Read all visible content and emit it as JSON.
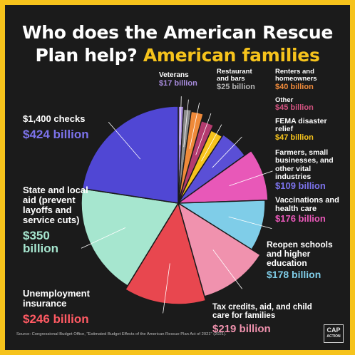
{
  "title_line1": "Who does the American Rescue",
  "title_line2_white": "Plan help?",
  "title_line2_highlight": "American families",
  "colors": {
    "background": "#1b1b1b",
    "frame": "#f6c31c",
    "highlight": "#f6c31c"
  },
  "chart_data": {
    "type": "pie",
    "title": "Who does the American Rescue Plan help? American families",
    "unit": "billion",
    "slices": [
      {
        "label": "Veterans",
        "value": 17,
        "amount_text": "$17 billion",
        "color": "#a78bdc"
      },
      {
        "label": "Restaurant and bars",
        "value": 25,
        "amount_text": "$25 billion",
        "color": "#8d8d8d"
      },
      {
        "label": "Renters and homeowners",
        "value": 40,
        "amount_text": "$40 billion",
        "color": "#ef8a3a"
      },
      {
        "label": "Other",
        "value": 45,
        "amount_text": "$45 billion",
        "color": "#b43b6e"
      },
      {
        "label": "FEMA disaster relief",
        "value": 47,
        "amount_text": "$47 billion",
        "color": "#f6c31c"
      },
      {
        "label": "Farmers, small businesses, and other vital industries",
        "value": 109,
        "amount_text": "$109 billion",
        "color": "#5a4fd6"
      },
      {
        "label": "Vaccinations and health care",
        "value": 176,
        "amount_text": "$176 billion",
        "color": "#e858b8"
      },
      {
        "label": "Reopen schools and higher education",
        "value": 178,
        "amount_text": "$178 billion",
        "color": "#7fcde8"
      },
      {
        "label": "Tax credits, aid, and child care for families",
        "value": 219,
        "amount_text": "$219 billion",
        "color": "#f092ae"
      },
      {
        "label": "Unemployment insurance",
        "value": 246,
        "amount_text": "$246 billion",
        "color": "#e8474f"
      },
      {
        "label": "State and local aid (prevent layoffs and service cuts)",
        "value": 350,
        "amount_text": "$350 billion",
        "color": "#a6e6cf"
      },
      {
        "label": "$1,400 checks",
        "value": 424,
        "amount_text": "$424 billion",
        "color": "#5047d4"
      }
    ]
  },
  "source": "Source: Congressional Budget Office, \"Estimated Budget Effects of the American Rescue Plan Act of 2021\" (2021).",
  "logo": {
    "line1": "CAP",
    "line2": "ACTION"
  }
}
